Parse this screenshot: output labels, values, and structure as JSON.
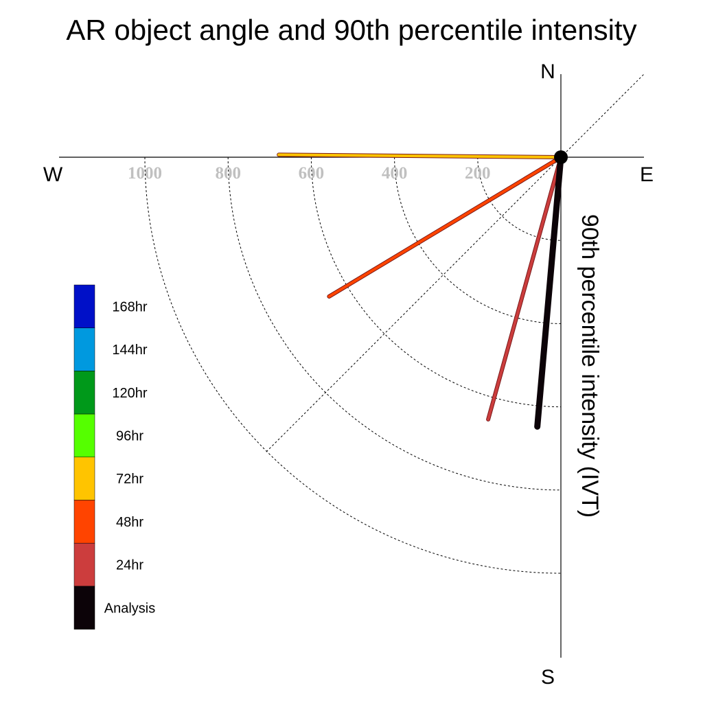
{
  "chart_data": {
    "type": "polar-vector",
    "title": "AR object angle and 90th percentile intensity",
    "radial_label": "90th percentile intensity (IVT)",
    "compass": {
      "north": "N",
      "east": "E",
      "south": "S",
      "west": "W"
    },
    "radial_ticks": [
      200,
      400,
      600,
      800,
      1000
    ],
    "radial_tick_labels": [
      "200",
      "400",
      "600",
      "800",
      "1000"
    ],
    "rmax": 1200,
    "grid": true,
    "legend_position": "left",
    "legend": [
      {
        "label": "168hr",
        "color": "#0010c8"
      },
      {
        "label": "144hr",
        "color": "#0099df"
      },
      {
        "label": "120hr",
        "color": "#00991a"
      },
      {
        "label": "96hr",
        "color": "#55ff00"
      },
      {
        "label": "72hr",
        "color": "#ffc400"
      },
      {
        "label": "48hr",
        "color": "#ff4400"
      },
      {
        "label": "24hr",
        "color": "#cc3d3d"
      },
      {
        "label": "Analysis",
        "color": "#0c0308"
      }
    ],
    "series": [
      {
        "name": "72hr",
        "angle_deg": 270.5,
        "intensity": 678,
        "color": "#ffc400"
      },
      {
        "name": "48hr",
        "angle_deg": 239,
        "intensity": 650,
        "color": "#ff4400"
      },
      {
        "name": "24hr",
        "angle_deg": 195.5,
        "intensity": 654,
        "color": "#cc3d3d"
      },
      {
        "name": "Analysis",
        "angle_deg": 185,
        "intensity": 650,
        "color": "#0c0308"
      }
    ]
  }
}
